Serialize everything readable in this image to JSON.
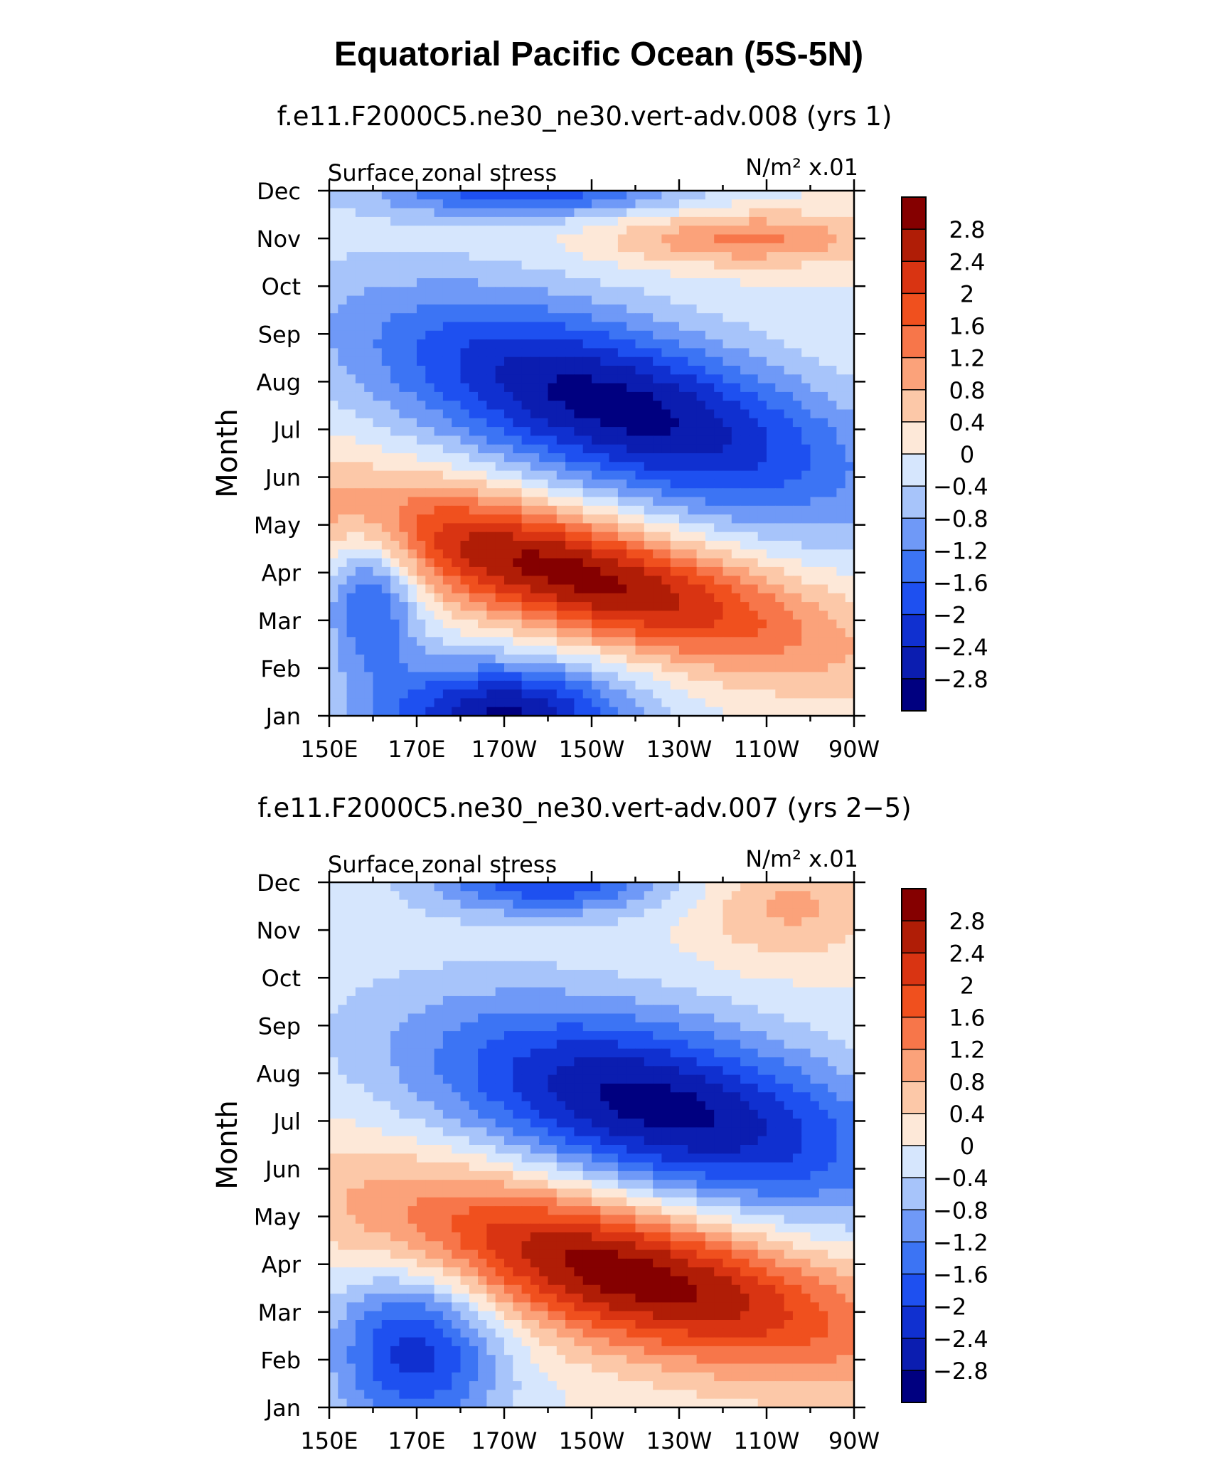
{
  "page": {
    "title": "Equatorial Pacific Ocean (5S-5N)"
  },
  "chart_data": [
    {
      "type": "heatmap",
      "title": "f.e11.F2000C5.ne30_ne30.vert-adv.008 (yrs 1)",
      "left_label": "Surface zonal stress",
      "units": "N/m² x.01",
      "ylabel": "Month",
      "xlabel": "",
      "x_ticks": [
        "150E",
        "170E",
        "170W",
        "150W",
        "130W",
        "110W",
        "90W"
      ],
      "y_ticks": [
        "Jan",
        "Feb",
        "Mar",
        "Apr",
        "May",
        "Jun",
        "Jul",
        "Aug",
        "Sep",
        "Oct",
        "Nov",
        "Dec"
      ],
      "xlim": [
        150,
        270
      ],
      "ylim": [
        1,
        12
      ],
      "features": [
        {
          "type": "positive band",
          "peak": 3.0,
          "center_lon": 205,
          "center_month": 4.0,
          "spread_lon": 28,
          "spread_month": 1.3,
          "tilt_deg_per_month": -22
        },
        {
          "type": "negative pool",
          "peak": -3.0,
          "center_lon": 215,
          "center_month": 7.5,
          "spread_lon": 32,
          "spread_month": 1.6,
          "tilt_deg_per_month": -15
        },
        {
          "type": "negative pool",
          "peak": -2.9,
          "center_lon": 190,
          "center_month": 1.0,
          "spread_lon": 20,
          "spread_month": 0.8
        },
        {
          "type": "negative pool",
          "peak": -1.8,
          "center_lon": 160,
          "center_month": 3.5,
          "spread_lon": 8,
          "spread_month": 1.2
        },
        {
          "type": "negative band",
          "peak": -1.9,
          "center_lon": 195,
          "center_month": 12.0,
          "spread_lon": 25,
          "spread_month": 0.4
        },
        {
          "type": "positive band",
          "peak": 1.3,
          "center_lon": 245,
          "center_month": 11.0,
          "spread_lon": 22,
          "spread_month": 0.4
        }
      ],
      "colorbar": {
        "labels": [
          "2.8",
          "2.4",
          "2",
          "1.6",
          "1.2",
          "0.8",
          "0.4",
          "0",
          "−0.4",
          "−0.8",
          "−1.2",
          "−1.6",
          "−2",
          "−2.4",
          "−2.8"
        ],
        "levels": [
          -2.8,
          -2.4,
          -2.0,
          -1.6,
          -1.2,
          -0.8,
          -0.4,
          0,
          0.4,
          0.8,
          1.2,
          1.6,
          2.0,
          2.4,
          2.8
        ],
        "colors": [
          "#000080",
          "#0b1db0",
          "#1030d0",
          "#1e50f0",
          "#3c74f4",
          "#6f99f7",
          "#a7c4fa",
          "#d6e6fd",
          "#fde8d8",
          "#fcc8a8",
          "#fba27a",
          "#f7764a",
          "#f0501e",
          "#d93412",
          "#b01d06",
          "#850000"
        ]
      }
    },
    {
      "type": "heatmap",
      "title": "f.e11.F2000C5.ne30_ne30.vert-adv.007 (yrs 2−5)",
      "left_label": "Surface zonal stress",
      "units": "N/m² x.01",
      "ylabel": "Month",
      "xlabel": "",
      "x_ticks": [
        "150E",
        "170E",
        "170W",
        "150W",
        "130W",
        "110W",
        "90W"
      ],
      "y_ticks": [
        "Jan",
        "Feb",
        "Mar",
        "Apr",
        "May",
        "Jun",
        "Jul",
        "Aug",
        "Sep",
        "Oct",
        "Nov",
        "Dec"
      ],
      "xlim": [
        150,
        270
      ],
      "ylim": [
        1,
        12
      ],
      "features": [
        {
          "type": "positive band",
          "peak": 3.1,
          "center_lon": 218,
          "center_month": 3.8,
          "spread_lon": 32,
          "spread_month": 1.4,
          "tilt_deg_per_month": -18
        },
        {
          "type": "negative pool",
          "peak": -3.0,
          "center_lon": 225,
          "center_month": 7.3,
          "spread_lon": 33,
          "spread_month": 1.5,
          "tilt_deg_per_month": -12
        },
        {
          "type": "negative pool",
          "peak": -2.2,
          "center_lon": 170,
          "center_month": 2.2,
          "spread_lon": 14,
          "spread_month": 1.3
        },
        {
          "type": "negative band",
          "peak": -1.9,
          "center_lon": 200,
          "center_month": 12.0,
          "spread_lon": 20,
          "spread_month": 0.5
        },
        {
          "type": "positive band",
          "peak": 0.9,
          "center_lon": 255,
          "center_month": 11.5,
          "spread_lon": 15,
          "spread_month": 0.8
        }
      ],
      "colorbar": {
        "labels": [
          "2.8",
          "2.4",
          "2",
          "1.6",
          "1.2",
          "0.8",
          "0.4",
          "0",
          "−0.4",
          "−0.8",
          "−1.2",
          "−1.6",
          "−2",
          "−2.4",
          "−2.8"
        ],
        "levels": [
          -2.8,
          -2.4,
          -2.0,
          -1.6,
          -1.2,
          -0.8,
          -0.4,
          0,
          0.4,
          0.8,
          1.2,
          1.6,
          2.0,
          2.4,
          2.8
        ],
        "colors": [
          "#000080",
          "#0b1db0",
          "#1030d0",
          "#1e50f0",
          "#3c74f4",
          "#6f99f7",
          "#a7c4fa",
          "#d6e6fd",
          "#fde8d8",
          "#fcc8a8",
          "#fba27a",
          "#f7764a",
          "#f0501e",
          "#d93412",
          "#b01d06",
          "#850000"
        ]
      }
    }
  ]
}
